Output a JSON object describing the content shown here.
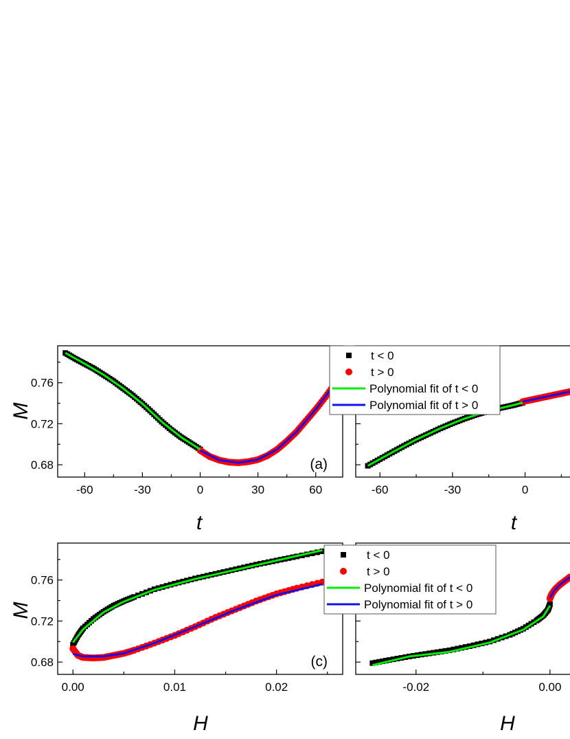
{
  "chart_data": [
    {
      "type": "scatter",
      "panel_label": "(a)",
      "xlabel": "t",
      "ylabel": "M",
      "xlim": [
        -74,
        74
      ],
      "ylim": [
        0.668,
        0.796
      ],
      "xticks": [
        -60,
        -30,
        0,
        30,
        60
      ],
      "xtick_labels": [
        "-60",
        "-30",
        "0",
        "30",
        "60"
      ],
      "yticks": [
        0.68,
        0.72,
        0.76
      ],
      "ytick_labels": [
        "0.68",
        "0.72",
        "0.76"
      ],
      "legend": [
        "t < 0",
        "t > 0",
        "Polynomial fit of t < 0",
        "Polynomial fit of t > 0"
      ],
      "legend_placement": "top-right",
      "series": [
        {
          "name": "t < 0",
          "marker": "square",
          "color": "#000000",
          "x": [
            -70,
            -65,
            -60,
            -55,
            -50,
            -45,
            -40,
            -35,
            -30,
            -25,
            -20,
            -15,
            -10,
            -5,
            0
          ],
          "y": [
            0.789,
            0.7835,
            0.7785,
            0.7735,
            0.7675,
            0.7615,
            0.7545,
            0.7475,
            0.7395,
            0.731,
            0.722,
            0.714,
            0.707,
            0.701,
            0.695
          ]
        },
        {
          "name": "t > 0",
          "marker": "circle",
          "color": "#ff0000",
          "x": [
            0,
            5,
            10,
            15,
            20,
            25,
            30,
            35,
            40,
            45,
            50,
            55,
            60,
            65,
            70
          ],
          "y": [
            0.694,
            0.688,
            0.6845,
            0.6825,
            0.682,
            0.683,
            0.685,
            0.689,
            0.695,
            0.703,
            0.712,
            0.723,
            0.734,
            0.746,
            0.759
          ]
        },
        {
          "name": "Polynomial fit of t < 0",
          "type": "line",
          "color": "#00ee00",
          "x": [
            -70,
            -60,
            -50,
            -40,
            -30,
            -20,
            -10,
            0
          ],
          "y": [
            0.789,
            0.7785,
            0.7675,
            0.7545,
            0.7395,
            0.722,
            0.707,
            0.695
          ]
        },
        {
          "name": "Polynomial fit of t > 0",
          "type": "line",
          "color": "#1010ee",
          "x": [
            0,
            10,
            20,
            30,
            40,
            50,
            60,
            70
          ],
          "y": [
            0.694,
            0.6845,
            0.682,
            0.685,
            0.695,
            0.712,
            0.734,
            0.759
          ]
        }
      ]
    },
    {
      "type": "scatter",
      "panel_label": "",
      "xlabel": "t",
      "ylabel": "",
      "xlim": [
        -70,
        20
      ],
      "ylim": [
        0.668,
        0.796
      ],
      "xticks": [
        -60,
        -30,
        0
      ],
      "xtick_labels": [
        "-60",
        "-30",
        "0"
      ],
      "yticks": [
        0.68,
        0.72,
        0.76
      ],
      "ytick_labels": [],
      "series": [
        {
          "name": "t < 0",
          "marker": "square",
          "color": "#000000",
          "x": [
            -65,
            -60,
            -55,
            -50,
            -45,
            -40,
            -35,
            -30,
            -25,
            -20,
            -15,
            -10,
            -5,
            -1
          ],
          "y": [
            0.679,
            0.6855,
            0.692,
            0.6985,
            0.7045,
            0.71,
            0.7155,
            0.7205,
            0.725,
            0.729,
            0.7325,
            0.7355,
            0.738,
            0.7405
          ]
        },
        {
          "name": "t > 0",
          "marker": "circle",
          "color": "#ff0000",
          "x": [
            -1,
            2,
            5,
            8,
            11,
            14,
            17,
            20
          ],
          "y": [
            0.7415,
            0.743,
            0.7445,
            0.746,
            0.7475,
            0.749,
            0.7505,
            0.752
          ]
        },
        {
          "name": "Polynomial fit of t < 0",
          "type": "line",
          "color": "#00ee00",
          "x": [
            -65,
            -55,
            -45,
            -35,
            -25,
            -15,
            -5,
            -1
          ],
          "y": [
            0.679,
            0.692,
            0.7045,
            0.7155,
            0.725,
            0.7325,
            0.738,
            0.7405
          ]
        },
        {
          "name": "Polynomial fit of t > 0",
          "type": "line",
          "color": "#1010ee",
          "x": [
            -1,
            5,
            11,
            17,
            20
          ],
          "y": [
            0.7415,
            0.7445,
            0.7475,
            0.7505,
            0.752
          ]
        }
      ]
    },
    {
      "type": "scatter",
      "panel_label": "(c)",
      "xlabel": "H",
      "ylabel": "M",
      "xlim": [
        -0.0015,
        0.0265
      ],
      "ylim": [
        0.668,
        0.796
      ],
      "xticks": [
        0.0,
        0.01,
        0.02
      ],
      "xtick_labels": [
        "0.00",
        "0.01",
        "0.02"
      ],
      "yticks": [
        0.68,
        0.72,
        0.76
      ],
      "ytick_labels": [
        "0.68",
        "0.72",
        "0.76"
      ],
      "legend": [
        "t < 0",
        "t > 0",
        "Polynomial fit of t < 0",
        "Polynomial fit of t > 0"
      ],
      "legend_placement": "top-right",
      "series": [
        {
          "name": "t < 0",
          "marker": "square",
          "color": "#000000",
          "x": [
            0.0,
            0.0005,
            0.001,
            0.002,
            0.003,
            0.004,
            0.005,
            0.006,
            0.008,
            0.01,
            0.012,
            0.014,
            0.016,
            0.018,
            0.02,
            0.022,
            0.0245
          ],
          "y": [
            0.697,
            0.706,
            0.713,
            0.722,
            0.729,
            0.735,
            0.7395,
            0.7435,
            0.751,
            0.7565,
            0.7615,
            0.766,
            0.7705,
            0.775,
            0.779,
            0.783,
            0.788
          ]
        },
        {
          "name": "t > 0",
          "marker": "circle",
          "color": "#ff0000",
          "x": [
            0.0,
            0.0005,
            0.001,
            0.002,
            0.003,
            0.004,
            0.005,
            0.006,
            0.008,
            0.01,
            0.012,
            0.014,
            0.016,
            0.018,
            0.02,
            0.022,
            0.0245
          ],
          "y": [
            0.693,
            0.6865,
            0.6845,
            0.684,
            0.6845,
            0.6865,
            0.6885,
            0.6915,
            0.6985,
            0.706,
            0.7145,
            0.7235,
            0.7315,
            0.7395,
            0.7465,
            0.752,
            0.758
          ]
        },
        {
          "name": "Polynomial fit of t < 0",
          "type": "line",
          "color": "#00ee00",
          "x": [
            0.0,
            0.001,
            0.003,
            0.005,
            0.008,
            0.012,
            0.016,
            0.02,
            0.0245
          ],
          "y": [
            0.699,
            0.712,
            0.7285,
            0.739,
            0.7505,
            0.761,
            0.77,
            0.779,
            0.789
          ]
        },
        {
          "name": "Polynomial fit of t > 0",
          "type": "line",
          "color": "#1010ee",
          "x": [
            0.0,
            0.001,
            0.003,
            0.005,
            0.008,
            0.012,
            0.016,
            0.02,
            0.0245
          ],
          "y": [
            0.688,
            0.6855,
            0.6855,
            0.6885,
            0.6985,
            0.7145,
            0.731,
            0.7455,
            0.756
          ]
        }
      ]
    },
    {
      "type": "scatter",
      "panel_label": "",
      "xlabel": "H",
      "ylabel": "",
      "xlim": [
        -0.029,
        0.0035
      ],
      "ylim": [
        0.668,
        0.796
      ],
      "xticks": [
        -0.02,
        0.0
      ],
      "xtick_labels": [
        "-0.02",
        "0.00"
      ],
      "yticks": [
        0.68,
        0.72,
        0.76
      ],
      "ytick_labels": [],
      "series": [
        {
          "name": "t < 0",
          "marker": "square",
          "color": "#000000",
          "x": [
            -0.0265,
            -0.024,
            -0.021,
            -0.018,
            -0.015,
            -0.012,
            -0.009,
            -0.006,
            -0.004,
            -0.002,
            -0.001,
            -0.0003,
            0.0
          ],
          "y": [
            0.679,
            0.682,
            0.6855,
            0.6885,
            0.6915,
            0.6955,
            0.7,
            0.7065,
            0.7125,
            0.7205,
            0.7255,
            0.731,
            0.7365
          ]
        },
        {
          "name": "t > 0",
          "marker": "circle",
          "color": "#ff0000",
          "x": [
            0.0,
            0.0002,
            0.0006,
            0.001,
            0.0015,
            0.002,
            0.0025,
            0.003
          ],
          "y": [
            0.742,
            0.7455,
            0.7495,
            0.7525,
            0.7555,
            0.758,
            0.7605,
            0.763
          ]
        },
        {
          "name": "Polynomial fit of t < 0",
          "type": "line",
          "color": "#00ee00",
          "x": [
            -0.0265,
            -0.021,
            -0.015,
            -0.009,
            -0.004,
            -0.001,
            0.0
          ],
          "y": [
            0.677,
            0.6855,
            0.69,
            0.699,
            0.7115,
            0.7245,
            0.735
          ]
        },
        {
          "name": "Polynomial fit of t > 0",
          "type": "line",
          "color": "#1010ee",
          "x": [
            0.0,
            0.0006,
            0.0015,
            0.0025,
            0.0035
          ],
          "y": [
            0.7425,
            0.7495,
            0.7555,
            0.7605,
            0.765
          ]
        }
      ]
    }
  ]
}
